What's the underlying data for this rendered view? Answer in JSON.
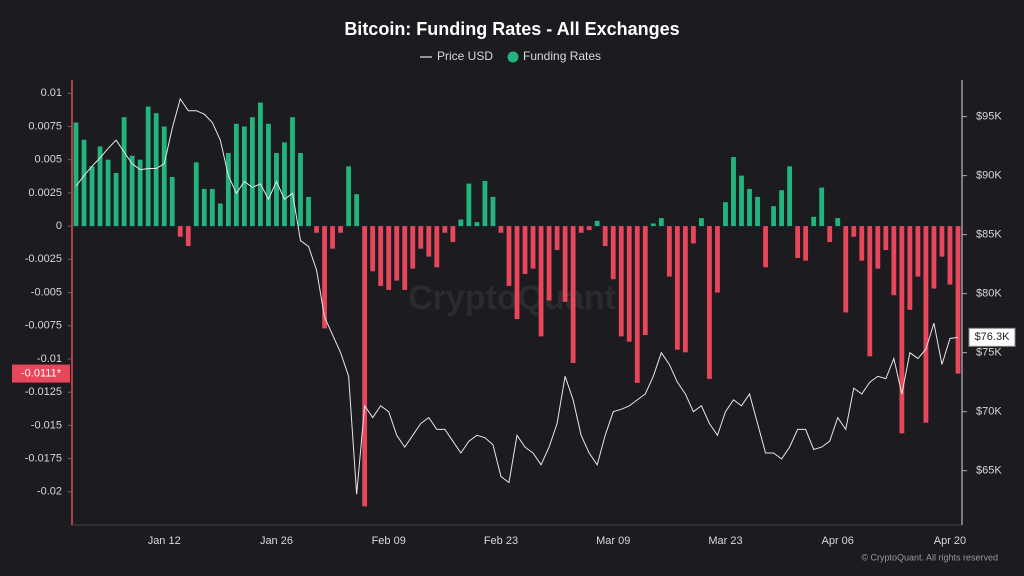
{
  "chart_data": {
    "type": "bar",
    "title": "Bitcoin: Funding Rates - All Exchanges",
    "categories": [
      null,
      null,
      null,
      null,
      null,
      null,
      null,
      null,
      null,
      null,
      null,
      "Jan 12",
      null,
      null,
      null,
      null,
      null,
      null,
      null,
      null,
      null,
      null,
      null,
      null,
      null,
      "Jan 26",
      null,
      null,
      null,
      null,
      null,
      null,
      null,
      null,
      null,
      null,
      null,
      null,
      null,
      "Feb 09",
      null,
      null,
      null,
      null,
      null,
      null,
      null,
      null,
      null,
      null,
      null,
      null,
      null,
      "Feb 23",
      null,
      null,
      null,
      null,
      null,
      null,
      null,
      null,
      null,
      null,
      null,
      null,
      null,
      "Mar 09",
      null,
      null,
      null,
      null,
      null,
      null,
      null,
      null,
      null,
      null,
      null,
      null,
      null,
      "Mar 23",
      null,
      null,
      null,
      null,
      null,
      null,
      null,
      null,
      null,
      null,
      null,
      null,
      null,
      "Apr 06",
      null,
      null,
      null,
      null,
      null,
      null,
      null,
      null,
      null,
      null,
      null,
      null,
      null,
      "Apr 20",
      null
    ],
    "series": [
      {
        "name": "Funding Rates",
        "type": "bar",
        "color": "#23b47e",
        "negative_color": "#e8465a",
        "values": [
          0.0078,
          0.0065,
          0.0045,
          0.006,
          0.005,
          0.004,
          0.0082,
          0.0053,
          0.005,
          0.009,
          0.0085,
          0.0075,
          0.0037,
          -0.0008,
          -0.0015,
          0.0048,
          0.0028,
          0.0028,
          0.0017,
          0.0055,
          0.0077,
          0.0075,
          0.0082,
          0.0093,
          0.0077,
          0.0055,
          0.0063,
          0.0082,
          0.0055,
          0.0022,
          -0.0005,
          -0.0077,
          -0.0017,
          -0.0005,
          0.0045,
          0.0024,
          -0.0211,
          -0.0034,
          -0.0045,
          -0.0048,
          -0.0041,
          -0.0048,
          -0.0032,
          -0.0017,
          -0.0023,
          -0.0031,
          -0.0005,
          -0.0012,
          0.0005,
          0.0032,
          0.0003,
          0.0034,
          0.0022,
          -0.0005,
          -0.0045,
          -0.007,
          -0.0036,
          -0.0032,
          -0.0083,
          -0.0056,
          -0.0018,
          -0.0057,
          -0.0103,
          -0.0005,
          -0.0003,
          0.0004,
          -0.0015,
          -0.004,
          -0.0083,
          -0.0087,
          -0.0118,
          -0.0082,
          0.0002,
          0.0006,
          -0.0038,
          -0.0093,
          -0.0095,
          -0.0013,
          0.0006,
          -0.0115,
          -0.005,
          0.0018,
          0.0052,
          0.0038,
          0.0028,
          0.0022,
          -0.0031,
          0.0015,
          0.0027,
          0.0045,
          -0.0024,
          -0.0026,
          0.0007,
          0.0029,
          -0.0012,
          0.0006,
          -0.0065,
          -0.0008,
          -0.0026,
          -0.0098,
          -0.0032,
          -0.0018,
          -0.0052,
          -0.0156,
          -0.0063,
          -0.0038,
          -0.0148,
          -0.0047,
          -0.0023,
          -0.0044,
          -0.0111
        ]
      },
      {
        "name": "Price USD",
        "type": "line",
        "axis": "y2",
        "color": "#e6e6e6",
        "values": [
          89100,
          90000,
          90800,
          91500,
          92300,
          93000,
          92000,
          91000,
          90500,
          90600,
          90600,
          91000,
          94000,
          96500,
          95500,
          95500,
          95200,
          94500,
          93000,
          90000,
          88500,
          89500,
          89000,
          89300,
          88000,
          89500,
          88000,
          88500,
          84500,
          84000,
          82000,
          78000,
          76500,
          75000,
          73000,
          63000,
          70500,
          69500,
          70500,
          70000,
          68000,
          67000,
          68000,
          69000,
          69500,
          68500,
          68500,
          67500,
          66500,
          67500,
          68000,
          67800,
          67200,
          64500,
          64000,
          68000,
          67000,
          66500,
          65500,
          67000,
          69000,
          73000,
          71000,
          68000,
          66500,
          65500,
          68000,
          70000,
          70200,
          70500,
          71000,
          71500,
          73000,
          75000,
          74000,
          72500,
          71500,
          70000,
          70500,
          69000,
          68000,
          70000,
          71000,
          70500,
          71500,
          69000,
          66500,
          66500,
          66000,
          67000,
          68500,
          68500,
          66800,
          67000,
          67500,
          69500,
          68500,
          72000,
          71500,
          72500,
          73000,
          72800,
          74500,
          71500,
          75000,
          74500,
          75300,
          77500,
          74000,
          76200,
          76300
        ]
      }
    ],
    "ylim": [
      -0.0225,
      0.011
    ],
    "yticks": [
      0.01,
      0.0075,
      0.005,
      0.0025,
      0,
      -0.0025,
      -0.005,
      -0.0075,
      -0.01,
      -0.0125,
      -0.015,
      -0.0175,
      -0.02
    ],
    "y2lim": [
      60400,
      98100
    ],
    "y2ticks": [
      {
        "value": 65000,
        "label": "$65K"
      },
      {
        "value": 70000,
        "label": "$70K"
      },
      {
        "value": 75000,
        "label": "$75K"
      },
      {
        "value": 80000,
        "label": "$80K"
      },
      {
        "value": 85000,
        "label": "$85K"
      },
      {
        "value": 90000,
        "label": "$90K"
      },
      {
        "value": 95000,
        "label": "$95K"
      }
    ],
    "grid": false,
    "legend": "top",
    "funding_label": "-0.0111*",
    "price_label": "$76.3K",
    "watermark": "CryptoQuant",
    "credit": "© CryptoQuant. All rights reserved"
  }
}
